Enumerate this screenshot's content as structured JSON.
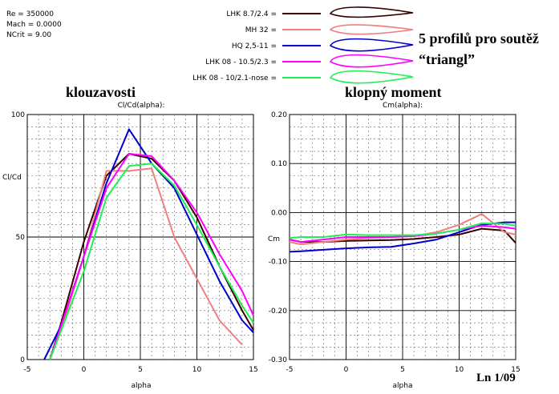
{
  "info_block": [
    "Re = 350000",
    "Mach = 0.0000",
    "NCrit = 9.00"
  ],
  "legend": [
    {
      "label": "LHK 8.7/2.4 =",
      "color": "#3a0000"
    },
    {
      "label": "MH 32 =",
      "color": "#f08080"
    },
    {
      "label": "HQ 2,5-11 =",
      "color": "#0000cc"
    },
    {
      "label": "LHK  08 - 10.5/2.3 =",
      "color": "#ff00ff"
    },
    {
      "label": "LHK  08 - 10/2.1-nose =",
      "color": "#22ee55"
    }
  ],
  "annotation_title": [
    "5 profilů pro soutěž",
    "“triangl”"
  ],
  "footer_note": "Ln 1/09",
  "chart_data": [
    {
      "type": "line",
      "heading": "klouzavosti",
      "title": "Cl/Cd(alpha):",
      "xlabel": "alpha",
      "ylabel": "Cl/Cd",
      "xlim": [
        -5,
        15
      ],
      "ylim": [
        0,
        100
      ],
      "xticks": [
        "-5",
        "0",
        "5",
        "10",
        "15"
      ],
      "yticks": [
        "0",
        "50",
        "100"
      ],
      "grid": true,
      "series": [
        {
          "name": "LHK 8.7/2.4",
          "x": [
            -3,
            -2,
            0,
            2,
            4,
            6,
            8,
            10,
            12,
            14,
            15
          ],
          "y": [
            0,
            15,
            48,
            75,
            84,
            82,
            73,
            58,
            38,
            20,
            12
          ]
        },
        {
          "name": "MH 32",
          "x": [
            -3,
            -2,
            0,
            2,
            4,
            6,
            8,
            10,
            12,
            14
          ],
          "y": [
            0,
            12,
            42,
            77,
            77,
            78,
            50,
            33,
            16,
            6
          ]
        },
        {
          "name": "HQ 2,5-11",
          "x": [
            -3.5,
            -2,
            0,
            2,
            4,
            6,
            8,
            10,
            12,
            14,
            15
          ],
          "y": [
            0,
            14,
            42,
            72,
            94,
            80,
            70,
            51,
            32,
            16,
            11
          ]
        },
        {
          "name": "LHK  08 - 10.5/2.3",
          "x": [
            -3,
            -2,
            0,
            2,
            4,
            6,
            8,
            10,
            12,
            14,
            15
          ],
          "y": [
            0,
            14,
            42,
            70,
            84,
            83,
            73,
            60,
            43,
            28,
            18
          ]
        },
        {
          "name": "LHK  08 - 10/2.1-nose",
          "x": [
            -3,
            -2,
            0,
            2,
            4,
            6,
            8,
            10,
            12,
            14,
            15
          ],
          "y": [
            0,
            12,
            36,
            66,
            79,
            80,
            71,
            55,
            38,
            22,
            15
          ]
        }
      ]
    },
    {
      "type": "line",
      "heading": "klopný moment",
      "title": "Cm(alpha):",
      "xlabel": "alpha",
      "ylabel": "Cm",
      "xlim": [
        -5,
        15
      ],
      "ylim": [
        -0.3,
        0.2
      ],
      "xticks": [
        "-5",
        "0",
        "5",
        "10",
        "15"
      ],
      "yticks": [
        "-0.30",
        "-0.20",
        "-0.10",
        "0.00",
        "0.10",
        "0.20"
      ],
      "grid": true,
      "series": [
        {
          "name": "LHK 8.7/2.4",
          "x": [
            -5,
            -4,
            -2,
            0,
            2,
            4,
            6,
            8,
            10,
            12,
            14,
            15
          ],
          "y": [
            -0.055,
            -0.06,
            -0.06,
            -0.058,
            -0.057,
            -0.056,
            -0.054,
            -0.05,
            -0.045,
            -0.033,
            -0.037,
            -0.062
          ]
        },
        {
          "name": "MH 32",
          "x": [
            -5,
            -4,
            -2,
            0,
            2,
            4,
            6,
            8,
            10,
            12,
            14,
            15
          ],
          "y": [
            -0.06,
            -0.065,
            -0.06,
            -0.055,
            -0.052,
            -0.05,
            -0.048,
            -0.04,
            -0.025,
            -0.003,
            -0.04,
            -0.045
          ]
        },
        {
          "name": "HQ 2,5-11",
          "x": [
            -5,
            -4,
            -2,
            0,
            2,
            4,
            6,
            8,
            10,
            12,
            14,
            15
          ],
          "y": [
            -0.08,
            -0.079,
            -0.076,
            -0.073,
            -0.071,
            -0.07,
            -0.063,
            -0.055,
            -0.04,
            -0.025,
            -0.02,
            -0.02
          ]
        },
        {
          "name": "LHK  08 - 10.5/2.3",
          "x": [
            -5,
            -4,
            -2,
            0,
            2,
            4,
            6,
            8,
            10,
            12,
            14,
            15
          ],
          "y": [
            -0.055,
            -0.06,
            -0.055,
            -0.05,
            -0.05,
            -0.05,
            -0.048,
            -0.043,
            -0.035,
            -0.027,
            -0.03,
            -0.033
          ]
        },
        {
          "name": "LHK  08 - 10/2.1-nose",
          "x": [
            -5,
            -4,
            -2,
            0,
            2,
            4,
            6,
            8,
            10,
            12,
            14,
            15
          ],
          "y": [
            -0.052,
            -0.05,
            -0.05,
            -0.045,
            -0.046,
            -0.046,
            -0.046,
            -0.043,
            -0.035,
            -0.022,
            -0.023,
            -0.027
          ]
        }
      ]
    }
  ]
}
